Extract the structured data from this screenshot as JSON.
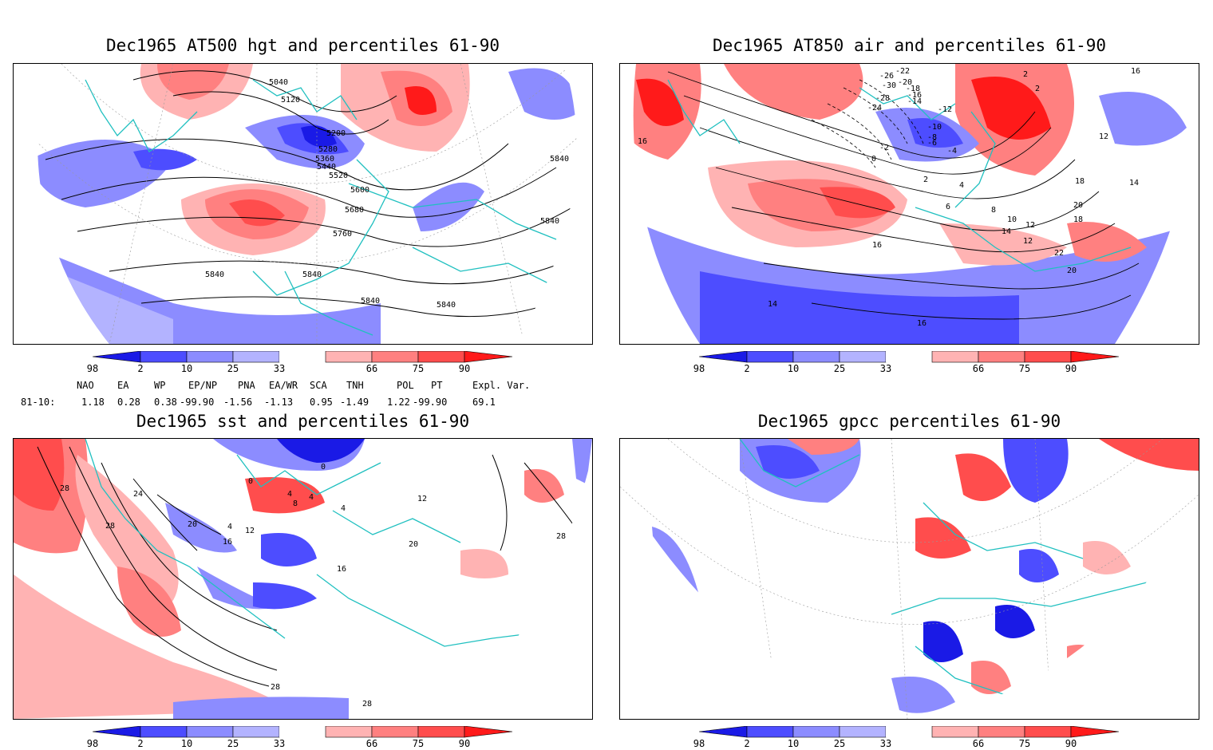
{
  "panels": [
    {
      "title": "Dec1965 AT500 hgt and percentiles 61-90"
    },
    {
      "title": "Dec1965 AT850 air and percentiles 61-90"
    },
    {
      "title": "Dec1965 sst and percentiles 61-90"
    },
    {
      "title": "Dec1965 gpcc percentiles 61-90"
    }
  ],
  "colorbar": {
    "labels": [
      "2",
      "10",
      "25",
      "33",
      "66",
      "75",
      "90",
      "98"
    ],
    "colors": [
      "#1a1ae6",
      "#4d4dff",
      "#8c8cff",
      "#b3b3ff",
      "#ffffff",
      "#ffb3b3",
      "#ff8080",
      "#ff4d4d",
      "#ff1a1a"
    ]
  },
  "indices": {
    "headers": [
      "NAO",
      "EA",
      "WP",
      "EP/NP",
      "PNA",
      "EA/WR",
      "SCA",
      "TNH",
      "POL",
      "PT",
      "Expl. Var."
    ],
    "row_label": "81-10:",
    "values": [
      "1.18",
      "0.28",
      "0.38",
      "-99.90",
      "-1.56",
      "-1.13",
      "0.95",
      "-1.49",
      "1.22",
      "-99.90",
      "69.1"
    ]
  },
  "contour_labels": {
    "hgt": [
      "5040",
      "5120",
      "5200",
      "5280",
      "5360",
      "5440",
      "5520",
      "5600",
      "5680",
      "5760",
      "5840",
      "5840",
      "5840",
      "5840",
      "5840",
      "5840"
    ],
    "air": [
      "-26",
      "-22",
      "-20",
      "-30",
      "-18",
      "-16",
      "-28",
      "-14",
      "-24",
      "-12",
      "-10",
      "-8",
      "-6",
      "-4",
      "-2",
      "0",
      "2",
      "4",
      "6",
      "8",
      "10",
      "12",
      "14",
      "16",
      "18",
      "20",
      "22",
      "12",
      "14",
      "16",
      "16",
      "18",
      "20",
      "12",
      "16",
      "14",
      "2",
      "2"
    ],
    "sst": [
      "28",
      "24",
      "28",
      "20",
      "16",
      "12",
      "4",
      "0",
      "4",
      "8",
      "4",
      "4",
      "0",
      "16",
      "20",
      "12",
      "28",
      "28",
      "28"
    ]
  }
}
